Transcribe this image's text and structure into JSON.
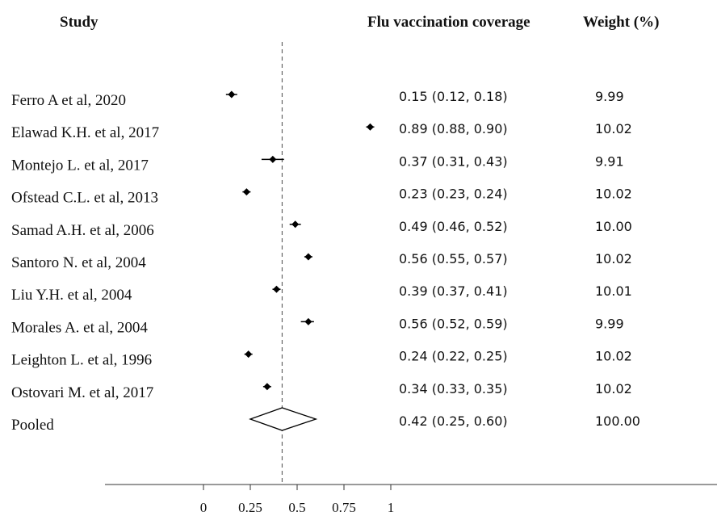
{
  "chart_data": {
    "type": "forest",
    "headers": {
      "study": "Study",
      "estimate": "Flu vaccination coverage",
      "weight": "Weight (%)"
    },
    "rows": [
      {
        "study": "Ferro A et al, 2020",
        "estimate": 0.15,
        "lower": 0.12,
        "upper": 0.18,
        "ci_text": "0.15 (0.12, 0.18)",
        "weight": "9.99"
      },
      {
        "study": "Elawad K.H. et al, 2017",
        "estimate": 0.89,
        "lower": 0.88,
        "upper": 0.9,
        "ci_text": "0.89 (0.88, 0.90)",
        "weight": "10.02"
      },
      {
        "study": "Montejo L. et al, 2017",
        "estimate": 0.37,
        "lower": 0.31,
        "upper": 0.43,
        "ci_text": "0.37 (0.31, 0.43)",
        "weight": "9.91"
      },
      {
        "study": "Ofstead C.L. et al, 2013",
        "estimate": 0.23,
        "lower": 0.23,
        "upper": 0.24,
        "ci_text": "0.23 (0.23, 0.24)",
        "weight": "10.02"
      },
      {
        "study": "Samad A.H. et al, 2006",
        "estimate": 0.49,
        "lower": 0.46,
        "upper": 0.52,
        "ci_text": "0.49 (0.46, 0.52)",
        "weight": "10.00"
      },
      {
        "study": "Santoro N. et al, 2004",
        "estimate": 0.56,
        "lower": 0.55,
        "upper": 0.57,
        "ci_text": "0.56 (0.55, 0.57)",
        "weight": "10.02"
      },
      {
        "study": "Liu Y.H. et al, 2004",
        "estimate": 0.39,
        "lower": 0.37,
        "upper": 0.41,
        "ci_text": "0.39 (0.37, 0.41)",
        "weight": "10.01"
      },
      {
        "study": "Morales A. et al, 2004",
        "estimate": 0.56,
        "lower": 0.52,
        "upper": 0.59,
        "ci_text": "0.56 (0.52, 0.59)",
        "weight": "9.99"
      },
      {
        "study": "Leighton L. et al, 1996",
        "estimate": 0.24,
        "lower": 0.22,
        "upper": 0.25,
        "ci_text": "0.24 (0.22, 0.25)",
        "weight": "10.02"
      },
      {
        "study": "Ostovari M. et al, 2017",
        "estimate": 0.34,
        "lower": 0.33,
        "upper": 0.35,
        "ci_text": "0.34 (0.33, 0.35)",
        "weight": "10.02"
      }
    ],
    "pooled": {
      "study": "Pooled",
      "estimate": 0.42,
      "lower": 0.25,
      "upper": 0.6,
      "ci_text": "0.42 (0.25, 0.60)",
      "weight": "100.00"
    },
    "x_ticks": [
      0,
      0.25,
      0.5,
      0.75,
      1
    ],
    "x_tick_labels": [
      "0",
      "0.25",
      "0.5",
      "0.75",
      "1"
    ],
    "reference_line": 0.42,
    "colors": {
      "text": "#111111",
      "marker": "#000000",
      "axis": "#333333",
      "reference": "#666666"
    }
  }
}
